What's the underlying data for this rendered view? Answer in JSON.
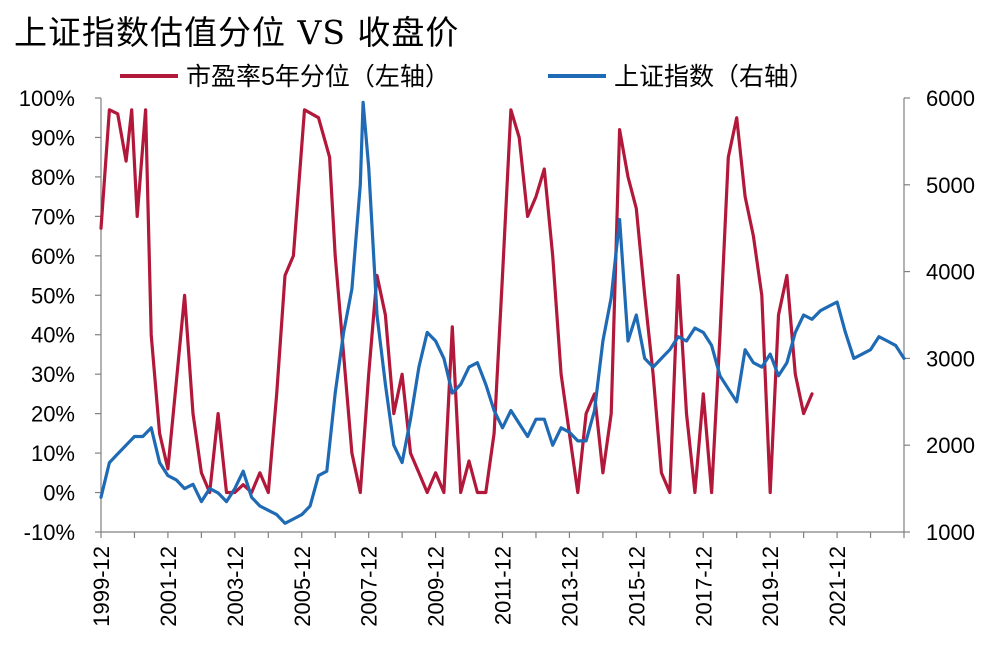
{
  "chart_data": {
    "type": "line",
    "title": "上证指数估值分位 VS 收盘价",
    "legend": {
      "placement": "top",
      "entries": [
        "市盈率5年分位（左轴）",
        "上证指数（右轴）"
      ]
    },
    "grid": false,
    "x_tick_labels": [
      "1999-12",
      "2001-12",
      "2003-12",
      "2005-12",
      "2007-12",
      "2009-12",
      "2011-12",
      "2013-12",
      "2015-12",
      "2017-12",
      "2019-12",
      "2021-12"
    ],
    "y_left": {
      "lim": [
        -0.1,
        1.0
      ],
      "ticks": [
        "-10%",
        "0%",
        "10%",
        "20%",
        "30%",
        "40%",
        "50%",
        "60%",
        "70%",
        "80%",
        "90%",
        "100%"
      ]
    },
    "y_right": {
      "lim": [
        1000,
        6000
      ],
      "ticks": [
        "1000",
        "2000",
        "3000",
        "4000",
        "5000",
        "6000"
      ]
    },
    "colors": {
      "pe_percentile": "#b2183a",
      "index": "#1f6ab4",
      "axis": "#808080"
    },
    "series": [
      {
        "name": "市盈率5年分位（左轴）",
        "axis": "left",
        "points": [
          [
            "1999-12",
            0.67
          ],
          [
            "2000-03",
            0.97
          ],
          [
            "2000-06",
            0.96
          ],
          [
            "2000-09",
            0.84
          ],
          [
            "2000-11",
            0.97
          ],
          [
            "2001-01",
            0.7
          ],
          [
            "2001-04",
            0.97
          ],
          [
            "2001-06",
            0.4
          ],
          [
            "2001-09",
            0.15
          ],
          [
            "2001-12",
            0.06
          ],
          [
            "2002-03",
            0.28
          ],
          [
            "2002-06",
            0.5
          ],
          [
            "2002-09",
            0.2
          ],
          [
            "2002-12",
            0.05
          ],
          [
            "2003-03",
            0.0
          ],
          [
            "2003-06",
            0.2
          ],
          [
            "2003-09",
            0.0
          ],
          [
            "2003-12",
            0.0
          ],
          [
            "2004-03",
            0.02
          ],
          [
            "2004-06",
            0.0
          ],
          [
            "2004-09",
            0.05
          ],
          [
            "2004-12",
            0.0
          ],
          [
            "2005-03",
            0.25
          ],
          [
            "2005-06",
            0.55
          ],
          [
            "2005-09",
            0.6
          ],
          [
            "2006-01",
            0.97
          ],
          [
            "2006-06",
            0.95
          ],
          [
            "2006-10",
            0.85
          ],
          [
            "2006-12",
            0.6
          ],
          [
            "2007-03",
            0.35
          ],
          [
            "2007-06",
            0.1
          ],
          [
            "2007-09",
            0.0
          ],
          [
            "2007-12",
            0.3
          ],
          [
            "2008-03",
            0.55
          ],
          [
            "2008-06",
            0.45
          ],
          [
            "2008-09",
            0.2
          ],
          [
            "2008-12",
            0.3
          ],
          [
            "2009-03",
            0.1
          ],
          [
            "2009-06",
            0.05
          ],
          [
            "2009-09",
            0.0
          ],
          [
            "2009-12",
            0.05
          ],
          [
            "2010-03",
            0.0
          ],
          [
            "2010-06",
            0.42
          ],
          [
            "2010-09",
            0.0
          ],
          [
            "2010-12",
            0.08
          ],
          [
            "2011-03",
            0.0
          ],
          [
            "2011-06",
            0.0
          ],
          [
            "2011-09",
            0.15
          ],
          [
            "2011-12",
            0.55
          ],
          [
            "2012-03",
            0.97
          ],
          [
            "2012-06",
            0.9
          ],
          [
            "2012-09",
            0.7
          ],
          [
            "2012-12",
            0.75
          ],
          [
            "2013-03",
            0.82
          ],
          [
            "2013-06",
            0.6
          ],
          [
            "2013-09",
            0.3
          ],
          [
            "2013-12",
            0.15
          ],
          [
            "2014-03",
            0.0
          ],
          [
            "2014-06",
            0.2
          ],
          [
            "2014-09",
            0.25
          ],
          [
            "2014-12",
            0.05
          ],
          [
            "2015-03",
            0.2
          ],
          [
            "2015-06",
            0.92
          ],
          [
            "2015-09",
            0.8
          ],
          [
            "2015-12",
            0.72
          ],
          [
            "2016-03",
            0.5
          ],
          [
            "2016-06",
            0.3
          ],
          [
            "2016-09",
            0.05
          ],
          [
            "2016-12",
            0.0
          ],
          [
            "2017-03",
            0.55
          ],
          [
            "2017-06",
            0.2
          ],
          [
            "2017-09",
            0.0
          ],
          [
            "2017-12",
            0.25
          ],
          [
            "2018-03",
            0.0
          ],
          [
            "2018-06",
            0.4
          ],
          [
            "2018-09",
            0.85
          ],
          [
            "2018-12",
            0.95
          ],
          [
            "2019-03",
            0.75
          ],
          [
            "2019-06",
            0.65
          ],
          [
            "2019-09",
            0.5
          ],
          [
            "2019-12",
            0.0
          ],
          [
            "2020-03",
            0.45
          ],
          [
            "2020-06",
            0.55
          ],
          [
            "2020-09",
            0.3
          ],
          [
            "2020-12",
            0.2
          ],
          [
            "2021-03",
            0.25
          ]
        ]
      },
      {
        "name": "上证指数（右轴）",
        "axis": "right",
        "points": [
          [
            "1999-12",
            1400
          ],
          [
            "2000-03",
            1800
          ],
          [
            "2000-06",
            1900
          ],
          [
            "2000-09",
            2000
          ],
          [
            "2000-12",
            2100
          ],
          [
            "2001-03",
            2100
          ],
          [
            "2001-06",
            2200
          ],
          [
            "2001-09",
            1800
          ],
          [
            "2001-12",
            1650
          ],
          [
            "2002-03",
            1600
          ],
          [
            "2002-06",
            1500
          ],
          [
            "2002-09",
            1550
          ],
          [
            "2002-12",
            1350
          ],
          [
            "2003-03",
            1500
          ],
          [
            "2003-06",
            1450
          ],
          [
            "2003-09",
            1350
          ],
          [
            "2003-12",
            1500
          ],
          [
            "2004-03",
            1700
          ],
          [
            "2004-06",
            1400
          ],
          [
            "2004-09",
            1300
          ],
          [
            "2004-12",
            1250
          ],
          [
            "2005-03",
            1200
          ],
          [
            "2005-06",
            1100
          ],
          [
            "2005-09",
            1150
          ],
          [
            "2005-12",
            1200
          ],
          [
            "2006-03",
            1300
          ],
          [
            "2006-06",
            1650
          ],
          [
            "2006-09",
            1700
          ],
          [
            "2006-12",
            2600
          ],
          [
            "2007-03",
            3300
          ],
          [
            "2007-06",
            3800
          ],
          [
            "2007-09",
            5000
          ],
          [
            "2007-10",
            5950
          ],
          [
            "2007-12",
            5200
          ],
          [
            "2008-03",
            3500
          ],
          [
            "2008-06",
            2700
          ],
          [
            "2008-09",
            2000
          ],
          [
            "2008-12",
            1800
          ],
          [
            "2009-03",
            2300
          ],
          [
            "2009-06",
            2900
          ],
          [
            "2009-09",
            3300
          ],
          [
            "2009-12",
            3200
          ],
          [
            "2010-03",
            3000
          ],
          [
            "2010-06",
            2600
          ],
          [
            "2010-09",
            2700
          ],
          [
            "2010-12",
            2900
          ],
          [
            "2011-03",
            2950
          ],
          [
            "2011-06",
            2700
          ],
          [
            "2011-09",
            2400
          ],
          [
            "2011-12",
            2200
          ],
          [
            "2012-03",
            2400
          ],
          [
            "2012-06",
            2250
          ],
          [
            "2012-09",
            2100
          ],
          [
            "2012-12",
            2300
          ],
          [
            "2013-03",
            2300
          ],
          [
            "2013-06",
            2000
          ],
          [
            "2013-09",
            2200
          ],
          [
            "2013-12",
            2150
          ],
          [
            "2014-03",
            2050
          ],
          [
            "2014-06",
            2050
          ],
          [
            "2014-09",
            2400
          ],
          [
            "2014-12",
            3200
          ],
          [
            "2015-03",
            3700
          ],
          [
            "2015-06",
            4600
          ],
          [
            "2015-09",
            3200
          ],
          [
            "2015-12",
            3500
          ],
          [
            "2016-03",
            3000
          ],
          [
            "2016-06",
            2900
          ],
          [
            "2016-09",
            3000
          ],
          [
            "2016-12",
            3100
          ],
          [
            "2017-03",
            3250
          ],
          [
            "2017-06",
            3200
          ],
          [
            "2017-09",
            3350
          ],
          [
            "2017-12",
            3300
          ],
          [
            "2018-03",
            3150
          ],
          [
            "2018-06",
            2800
          ],
          [
            "2018-09",
            2650
          ],
          [
            "2018-12",
            2500
          ],
          [
            "2019-03",
            3100
          ],
          [
            "2019-06",
            2950
          ],
          [
            "2019-09",
            2900
          ],
          [
            "2019-12",
            3050
          ],
          [
            "2020-03",
            2800
          ],
          [
            "2020-06",
            2950
          ],
          [
            "2020-09",
            3300
          ],
          [
            "2020-12",
            3500
          ],
          [
            "2021-03",
            3450
          ],
          [
            "2021-06",
            3550
          ],
          [
            "2021-09",
            3600
          ],
          [
            "2021-12",
            3650
          ],
          [
            "2022-03",
            3300
          ],
          [
            "2022-06",
            3000
          ],
          [
            "2022-09",
            3050
          ],
          [
            "2022-12",
            3100
          ],
          [
            "2023-03",
            3250
          ],
          [
            "2023-06",
            3200
          ],
          [
            "2023-09",
            3150
          ],
          [
            "2023-12",
            3000
          ]
        ]
      }
    ]
  }
}
